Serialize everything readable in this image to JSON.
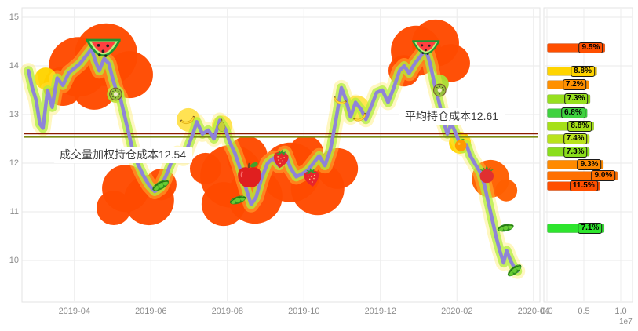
{
  "left_chart": {
    "cost_lines": [
      {
        "id": "avg",
        "label": "平均持仓成本12.61",
        "price": 12.61,
        "color": "#8b1a00"
      },
      {
        "id": "vwap",
        "label": "成交量加权持仓成本12.54",
        "price": 12.54,
        "color": "#7c8a14"
      }
    ]
  },
  "right_chart": {
    "x_ticks": [
      "0.0",
      "0.5",
      "1.0"
    ],
    "x_tick_values": [
      0,
      0.5,
      1.0
    ],
    "exponent": "1e7"
  },
  "chart_data": [
    {
      "type": "line",
      "name": "price-history",
      "x_unit": "months_since_2019-03",
      "x_tick_labels": [
        "2019-04",
        "2019-06",
        "2019-08",
        "2019-10",
        "2019-12",
        "2020-02",
        "2020-04"
      ],
      "x_tick_positions": [
        1,
        3,
        5,
        7,
        9,
        11,
        13
      ],
      "y_ticks": [
        15,
        14,
        13,
        12,
        11,
        10
      ],
      "ylim": [
        9.5,
        15.2
      ],
      "line_color": "#8f83d8",
      "glow_color_inner": "#b0ee3e",
      "glow_color_outer": "#ffe94d",
      "avg_cost": 12.61,
      "vwap_cost": 12.54,
      "points": [
        [
          -0.2,
          13.9
        ],
        [
          -0.1,
          13.55
        ],
        [
          0.0,
          13.3
        ],
        [
          0.1,
          12.8
        ],
        [
          0.18,
          12.72
        ],
        [
          0.3,
          13.5
        ],
        [
          0.42,
          13.15
        ],
        [
          0.55,
          13.75
        ],
        [
          0.7,
          13.6
        ],
        [
          0.85,
          13.85
        ],
        [
          1.0,
          13.95
        ],
        [
          1.15,
          14.05
        ],
        [
          1.3,
          14.2
        ],
        [
          1.45,
          14.35
        ],
        [
          1.55,
          14.1
        ],
        [
          1.65,
          13.9
        ],
        [
          1.78,
          14.15
        ],
        [
          1.9,
          14.05
        ],
        [
          2.0,
          13.75
        ],
        [
          2.1,
          13.48
        ],
        [
          2.2,
          13.35
        ],
        [
          2.35,
          12.85
        ],
        [
          2.5,
          12.35
        ],
        [
          2.65,
          12.0
        ],
        [
          2.8,
          11.75
        ],
        [
          2.95,
          11.55
        ],
        [
          3.1,
          11.42
        ],
        [
          3.25,
          11.5
        ],
        [
          3.4,
          11.75
        ],
        [
          3.55,
          12.05
        ],
        [
          3.7,
          12.2
        ],
        [
          3.85,
          12.1
        ],
        [
          3.95,
          12.3
        ],
        [
          4.1,
          12.6
        ],
        [
          4.2,
          12.85
        ],
        [
          4.35,
          12.6
        ],
        [
          4.5,
          12.68
        ],
        [
          4.65,
          12.5
        ],
        [
          4.8,
          12.88
        ],
        [
          4.95,
          12.7
        ],
        [
          5.05,
          12.45
        ],
        [
          5.2,
          12.2
        ],
        [
          5.35,
          11.85
        ],
        [
          5.5,
          11.45
        ],
        [
          5.62,
          11.15
        ],
        [
          5.75,
          11.3
        ],
        [
          5.9,
          11.7
        ],
        [
          6.05,
          12.0
        ],
        [
          6.2,
          12.1
        ],
        [
          6.35,
          11.95
        ],
        [
          6.5,
          12.2
        ],
        [
          6.65,
          11.9
        ],
        [
          6.8,
          11.72
        ],
        [
          6.95,
          11.78
        ],
        [
          7.1,
          11.85
        ],
        [
          7.25,
          12.0
        ],
        [
          7.4,
          12.15
        ],
        [
          7.55,
          11.95
        ],
        [
          7.7,
          12.3
        ],
        [
          7.85,
          12.95
        ],
        [
          7.98,
          13.55
        ],
        [
          8.1,
          13.3
        ],
        [
          8.22,
          12.95
        ],
        [
          8.35,
          13.25
        ],
        [
          8.5,
          13.1
        ],
        [
          8.62,
          12.9
        ],
        [
          8.75,
          13.15
        ],
        [
          8.9,
          13.45
        ],
        [
          9.05,
          13.5
        ],
        [
          9.2,
          13.25
        ],
        [
          9.35,
          13.55
        ],
        [
          9.5,
          13.9
        ],
        [
          9.62,
          14.0
        ],
        [
          9.75,
          13.85
        ],
        [
          9.9,
          14.05
        ],
        [
          10.05,
          14.2
        ],
        [
          10.18,
          14.35
        ],
        [
          10.3,
          14.05
        ],
        [
          10.42,
          13.6
        ],
        [
          10.55,
          13.2
        ],
        [
          10.65,
          12.85
        ],
        [
          10.75,
          12.6
        ],
        [
          10.85,
          12.82
        ],
        [
          10.95,
          12.65
        ],
        [
          11.05,
          12.45
        ],
        [
          11.15,
          12.3
        ],
        [
          11.25,
          12.38
        ],
        [
          11.35,
          12.15
        ],
        [
          11.5,
          11.95
        ],
        [
          11.62,
          11.8
        ],
        [
          11.72,
          11.55
        ],
        [
          11.82,
          11.2
        ],
        [
          11.92,
          10.85
        ],
        [
          12.02,
          10.5
        ],
        [
          12.12,
          10.2
        ],
        [
          12.22,
          9.95
        ],
        [
          12.3,
          10.2
        ],
        [
          12.4,
          10.0
        ],
        [
          12.5,
          9.85
        ],
        [
          12.58,
          9.78
        ]
      ]
    },
    {
      "type": "bar",
      "name": "holding-cost-distribution",
      "orientation": "horizontal",
      "xlim": [
        0,
        1.0
      ],
      "x_unit": "1e7",
      "bars": [
        {
          "price": 14.37,
          "pct": "9.5%",
          "volume": 0.78,
          "color": "#ff4f00"
        },
        {
          "price": 13.89,
          "pct": "8.8%",
          "volume": 0.67,
          "color": "#ffd400"
        },
        {
          "price": 13.61,
          "pct": "7.2%",
          "volume": 0.56,
          "color": "#ff9000"
        },
        {
          "price": 13.32,
          "pct": "7.3%",
          "volume": 0.58,
          "color": "#97e01f"
        },
        {
          "price": 13.03,
          "pct": "6.8%",
          "volume": 0.54,
          "color": "#3fd23f"
        },
        {
          "price": 12.76,
          "pct": "8.8%",
          "volume": 0.63,
          "color": "#a5e018"
        },
        {
          "price": 12.5,
          "pct": "7.4%",
          "volume": 0.57,
          "color": "#b9e31c"
        },
        {
          "price": 12.23,
          "pct": "7.3%",
          "volume": 0.57,
          "color": "#8ade1d"
        },
        {
          "price": 11.97,
          "pct": "9.3%",
          "volume": 0.76,
          "color": "#ff8a00"
        },
        {
          "price": 11.74,
          "pct": "9.0%",
          "volume": 0.95,
          "color": "#ff7000"
        },
        {
          "price": 11.53,
          "pct": "11.5%",
          "volume": 0.71,
          "color": "#ff4f00"
        },
        {
          "price": 10.66,
          "pct": "7.1%",
          "volume": 0.77,
          "color": "#2ee52e"
        }
      ]
    }
  ],
  "decorations": {
    "fruits": [
      {
        "type": "watermelon",
        "m": 1.76,
        "price": 14.32,
        "size": 50,
        "rot": 0
      },
      {
        "type": "kiwi",
        "m": 2.08,
        "price": 13.42,
        "size": 20,
        "rot": 0
      },
      {
        "type": "peas",
        "m": 3.25,
        "price": 11.55,
        "size": 26,
        "rot": 0
      },
      {
        "type": "banana",
        "m": 3.95,
        "price": 12.92,
        "size": 24,
        "rot": -12
      },
      {
        "type": "pear",
        "m": 4.85,
        "price": 12.78,
        "size": 22,
        "rot": 0
      },
      {
        "type": "peas",
        "m": 5.27,
        "price": 11.25,
        "size": 24,
        "rot": 10
      },
      {
        "type": "apple",
        "m": 5.58,
        "price": 11.77,
        "size": 44,
        "rot": 0
      },
      {
        "type": "strawberry",
        "m": 6.4,
        "price": 12.1,
        "size": 32,
        "rot": 8
      },
      {
        "type": "strawberry",
        "m": 7.2,
        "price": 11.72,
        "size": 32,
        "rot": -8
      },
      {
        "type": "banana",
        "m": 7.95,
        "price": 13.32,
        "size": 22,
        "rot": 25
      },
      {
        "type": "banana",
        "m": 8.45,
        "price": 12.97,
        "size": 22,
        "rot": -20
      },
      {
        "type": "watermelon",
        "m": 10.19,
        "price": 14.34,
        "size": 40,
        "rot": 0
      },
      {
        "type": "kiwi",
        "m": 10.55,
        "price": 13.5,
        "size": 20,
        "rot": 0
      },
      {
        "type": "tangerine",
        "m": 11.1,
        "price": 12.38,
        "size": 20,
        "rot": 0
      },
      {
        "type": "radish",
        "m": 11.78,
        "price": 11.78,
        "size": 28,
        "rot": 0
      },
      {
        "type": "peas",
        "m": 12.27,
        "price": 10.68,
        "size": 24,
        "rot": 15
      },
      {
        "type": "peas",
        "m": 12.5,
        "price": 9.8,
        "size": 24,
        "rot": -10
      }
    ],
    "clouds": [
      {
        "color": "#ff4a00",
        "circles": [
          [
            1.11,
            13.98,
            38
          ],
          [
            1.83,
            14.23,
            40
          ],
          [
            2.44,
            13.82,
            30
          ],
          [
            0.7,
            13.58,
            25
          ],
          [
            1.52,
            13.55,
            28
          ]
        ]
      },
      {
        "color": "#ff4a00",
        "circles": [
          [
            2.34,
            11.48,
            30
          ],
          [
            2.95,
            11.24,
            32
          ],
          [
            2.03,
            11.08,
            22
          ],
          [
            3.26,
            11.56,
            20
          ]
        ]
      },
      {
        "color": "#ff4a00",
        "circles": [
          [
            4.43,
            11.89,
            20
          ],
          [
            5.11,
            11.73,
            40
          ],
          [
            5.72,
            11.32,
            35
          ],
          [
            4.9,
            11.16,
            28
          ],
          [
            5.52,
            12.13,
            26
          ]
        ]
      },
      {
        "color": "#ff4a00",
        "circles": [
          [
            6.65,
            11.81,
            38
          ],
          [
            7.36,
            11.48,
            34
          ],
          [
            7.88,
            11.89,
            26
          ],
          [
            7.06,
            12.21,
            22
          ]
        ]
      },
      {
        "color": "#ff4a00",
        "circles": [
          [
            9.93,
            14.31,
            32
          ],
          [
            10.44,
            14.47,
            30
          ],
          [
            10.85,
            14.06,
            24
          ],
          [
            9.62,
            13.9,
            20
          ]
        ]
      },
      {
        "color": "#ff5f00",
        "circles": [
          [
            11.88,
            11.68,
            24
          ],
          [
            12.29,
            11.44,
            14
          ]
        ]
      },
      {
        "color": "#ffd400",
        "circles": [
          [
            0.25,
            13.74,
            14
          ]
        ]
      },
      {
        "color": "#ffe14d",
        "circles": [
          [
            3.98,
            12.89,
            15
          ],
          [
            4.86,
            12.77,
            13
          ]
        ]
      },
      {
        "color": "#ffe14d",
        "circles": [
          [
            8.39,
            13.13,
            16
          ]
        ]
      },
      {
        "color": "#ffd400",
        "circles": [
          [
            11.08,
            12.42,
            14
          ]
        ]
      },
      {
        "color": "#aadc32",
        "circles": [
          [
            10.54,
            13.63,
            12
          ],
          [
            2.08,
            13.42,
            11
          ]
        ]
      }
    ]
  }
}
